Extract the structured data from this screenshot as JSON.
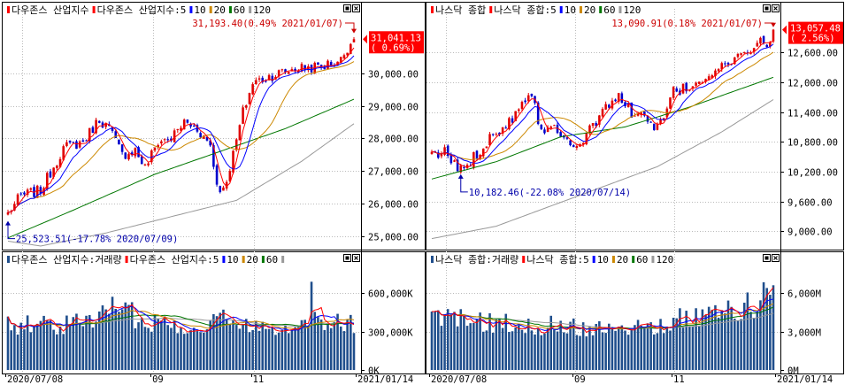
{
  "colors": {
    "up": "#e00000",
    "down": "#0000cc",
    "ma5": "#ff0000",
    "ma10": "#0000ff",
    "ma20": "#cc8800",
    "ma60": "#007700",
    "ma120": "#999999",
    "volume": "#1f4e8c",
    "price_tag": "#ff0000",
    "annotation_high": "#cc0000",
    "annotation_low": "#0000aa",
    "grid": "#bbbbbb",
    "frame": "#000000"
  },
  "icons": {
    "panel_menu": "square-marker-icon",
    "panel_close": "close-x-icon",
    "price_pointer": "left-triangle-icon"
  },
  "x_axis_labels": [
    "2020/07/08",
    "09",
    "11",
    "2021/01/14"
  ],
  "panels": [
    {
      "id": "dow",
      "legend_prefix": "다우존스 산업지수",
      "legend_ma_name": "다우존스 산업지수:5",
      "ma_labels": [
        "10",
        "20",
        "60",
        "120"
      ],
      "high_annotation": "31,193.40(0.49% 2021/01/07)",
      "low_annotation": "25,523.51(-17.78% 2020/07/09)",
      "current_price": "31,041.13",
      "current_change": "( 0.69%)",
      "volume_legend_prefix": "다우존스 산업지수:거래량",
      "volume_legend_ma_name": "다우존스 산업지수:5",
      "volume_ma_labels": [
        "10",
        "20",
        "60",
        ""
      ]
    },
    {
      "id": "nasdaq",
      "legend_prefix": "나스닥 종합",
      "legend_ma_name": "나스닥 종합:5",
      "ma_labels": [
        "10",
        "20",
        "60",
        "120"
      ],
      "high_annotation": "13,090.91(0.18% 2021/01/07)",
      "low_annotation": "10,182.46(-22.08% 2020/07/14)",
      "current_price": "13,057.48",
      "current_change": "( 2.56%)",
      "volume_legend_prefix": "나스닥 종합:거래량",
      "volume_legend_ma_name": "나스닥 종합:5",
      "volume_ma_labels": [
        "10",
        "20",
        "60",
        "120"
      ]
    }
  ],
  "chart_data": [
    {
      "type": "candlestick",
      "title": "다우존스 산업지수",
      "x_range": [
        "2020/07/08",
        "2021/01/14"
      ],
      "x_ticks": [
        "2020/07/08",
        "09",
        "11",
        "2021/01/14"
      ],
      "y_ticks": [
        "25,000.00",
        "26,000.00",
        "27,000.00",
        "28,000.00",
        "29,000.00",
        "30,000.00"
      ],
      "ylim": [
        24700,
        31700
      ],
      "grid": true,
      "moving_averages": [
        "5",
        "10",
        "20",
        "60",
        "120"
      ],
      "close_keypoints": [
        [
          0,
          25700
        ],
        [
          4,
          26250
        ],
        [
          10,
          26400
        ],
        [
          17,
          27700
        ],
        [
          23,
          27900
        ],
        [
          28,
          28600
        ],
        [
          31,
          28300
        ],
        [
          35,
          27500
        ],
        [
          39,
          27650
        ],
        [
          42,
          27100
        ],
        [
          46,
          27900
        ],
        [
          50,
          28000
        ],
        [
          54,
          28500
        ],
        [
          58,
          28300
        ],
        [
          62,
          27800
        ],
        [
          64,
          26600
        ],
        [
          66,
          26400
        ],
        [
          69,
          27500
        ],
        [
          72,
          28800
        ],
        [
          75,
          29700
        ],
        [
          80,
          29900
        ],
        [
          88,
          30150
        ],
        [
          96,
          30200
        ],
        [
          102,
          30400
        ],
        [
          104,
          30800
        ],
        [
          106,
          31041
        ]
      ],
      "ma60_keypoints": [
        [
          0,
          24950
        ],
        [
          20,
          25800
        ],
        [
          45,
          26900
        ],
        [
          65,
          27600
        ],
        [
          85,
          28300
        ],
        [
          106,
          29200
        ]
      ],
      "ma120_keypoints": [
        [
          0,
          24850
        ],
        [
          10,
          24700
        ],
        [
          30,
          25100
        ],
        [
          50,
          25600
        ],
        [
          70,
          26100
        ],
        [
          90,
          27300
        ],
        [
          106,
          28450
        ]
      ],
      "high": {
        "value": 31193.4,
        "change_pct": 0.49,
        "date": "2021/01/07"
      },
      "low": {
        "value": 25523.51,
        "change_pct": -17.78,
        "date": "2020/07/09"
      },
      "last": {
        "value": 31041.13,
        "change_pct": 0.69
      },
      "volume": {
        "y_ticks": [
          "0K",
          "300,000K",
          "600,000K"
        ],
        "ylim": [
          0,
          800000
        ],
        "keypoints": [
          [
            0,
            360000
          ],
          [
            10,
            370000
          ],
          [
            20,
            360000
          ],
          [
            30,
            470000
          ],
          [
            32,
            500000
          ],
          [
            40,
            420000
          ],
          [
            50,
            360000
          ],
          [
            60,
            360000
          ],
          [
            64,
            430000
          ],
          [
            70,
            360000
          ],
          [
            80,
            360000
          ],
          [
            92,
            360000
          ],
          [
            93,
            720000
          ],
          [
            96,
            360000
          ],
          [
            106,
            380000
          ]
        ]
      }
    },
    {
      "type": "candlestick",
      "title": "나스닥 종합",
      "x_range": [
        "2020/07/08",
        "2021/01/14"
      ],
      "x_ticks": [
        "2020/07/08",
        "09",
        "11",
        "2021/01/14"
      ],
      "y_ticks": [
        "9,000.00",
        "9,600.00",
        "10,200.00",
        "10,800.00",
        "11,400.00",
        "12,000.00",
        "12,600.00"
      ],
      "ylim": [
        8700,
        13300
      ],
      "grid": true,
      "moving_averages": [
        "5",
        "10",
        "20",
        "60",
        "120"
      ],
      "close_keypoints": [
        [
          0,
          10500
        ],
        [
          4,
          10600
        ],
        [
          8,
          10250
        ],
        [
          12,
          10400
        ],
        [
          18,
          10900
        ],
        [
          24,
          11200
        ],
        [
          29,
          11700
        ],
        [
          31,
          11800
        ],
        [
          34,
          11000
        ],
        [
          38,
          11100
        ],
        [
          42,
          10900
        ],
        [
          45,
          10700
        ],
        [
          50,
          11100
        ],
        [
          55,
          11600
        ],
        [
          58,
          11700
        ],
        [
          62,
          11400
        ],
        [
          66,
          11300
        ],
        [
          69,
          11000
        ],
        [
          72,
          11300
        ],
        [
          75,
          11800
        ],
        [
          80,
          11900
        ],
        [
          88,
          12250
        ],
        [
          96,
          12500
        ],
        [
          100,
          12750
        ],
        [
          103,
          12850
        ],
        [
          104,
          12650
        ],
        [
          106,
          13057
        ]
      ],
      "ma60_keypoints": [
        [
          0,
          10050
        ],
        [
          20,
          10400
        ],
        [
          40,
          10900
        ],
        [
          60,
          11100
        ],
        [
          80,
          11500
        ],
        [
          106,
          12100
        ]
      ],
      "ma120_keypoints": [
        [
          0,
          8850
        ],
        [
          20,
          9100
        ],
        [
          45,
          9700
        ],
        [
          70,
          10300
        ],
        [
          90,
          11000
        ],
        [
          106,
          11650
        ]
      ],
      "high": {
        "value": 13090.91,
        "change_pct": 0.18,
        "date": "2021/01/07"
      },
      "low": {
        "value": 10182.46,
        "change_pct": -22.08,
        "date": "2020/07/14"
      },
      "last": {
        "value": 13057.48,
        "change_pct": 2.56
      },
      "volume": {
        "y_ticks": [
          "0M",
          "3,000M",
          "6,000M"
        ],
        "ylim": [
          0,
          8000
        ],
        "keypoints": [
          [
            0,
            4100
          ],
          [
            10,
            4050
          ],
          [
            20,
            3800
          ],
          [
            30,
            3500
          ],
          [
            40,
            3600
          ],
          [
            50,
            3400
          ],
          [
            60,
            3500
          ],
          [
            70,
            3600
          ],
          [
            80,
            4200
          ],
          [
            90,
            4600
          ],
          [
            100,
            5200
          ],
          [
            103,
            6200
          ],
          [
            105,
            7300
          ],
          [
            106,
            6800
          ]
        ]
      }
    }
  ]
}
